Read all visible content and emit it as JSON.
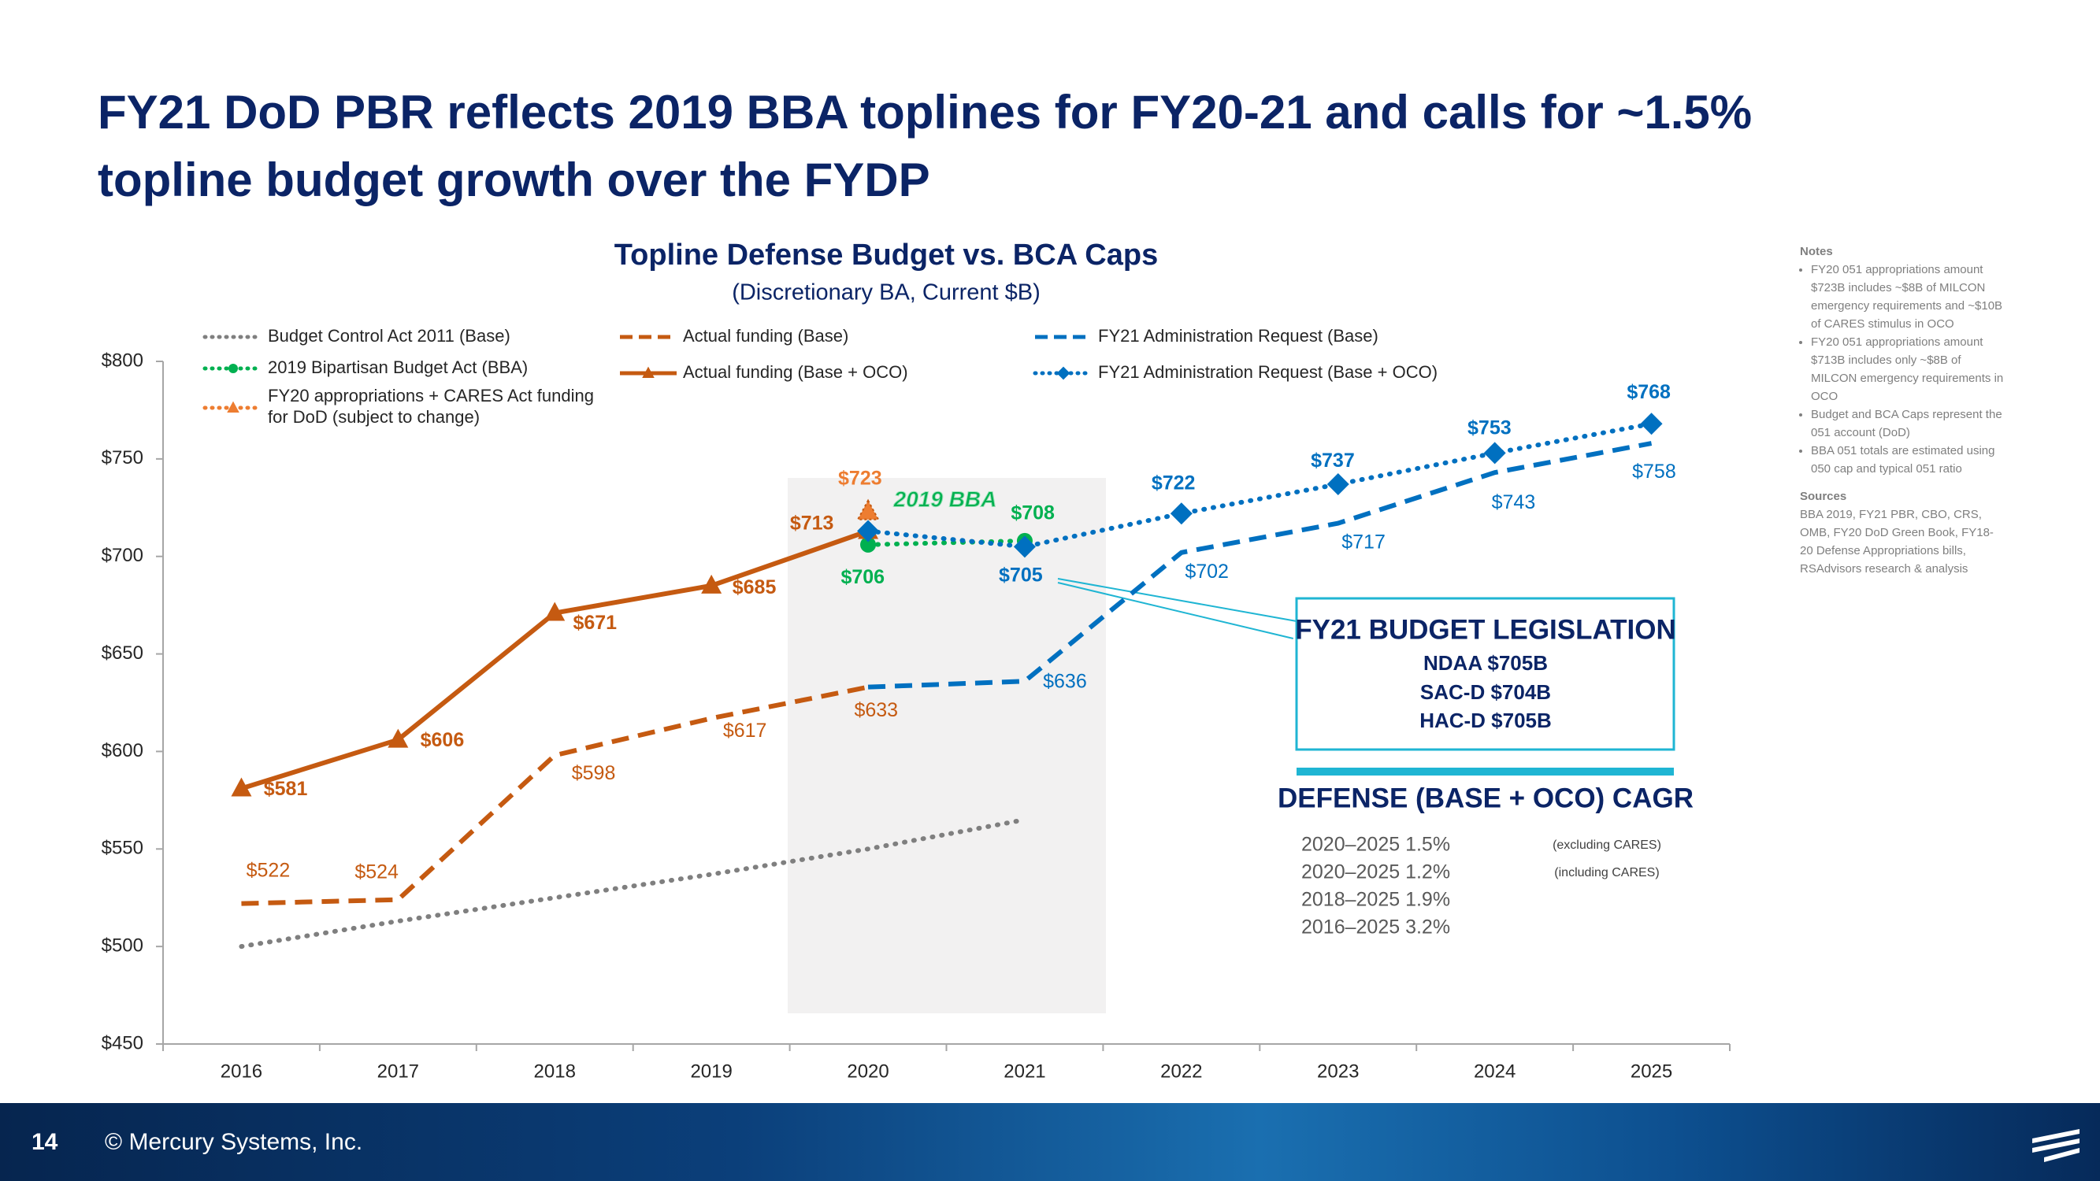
{
  "slide": {
    "title": "FY21 DoD PBR reflects 2019 BBA toplines for FY20-21 and calls for ~1.5% topline budget growth over the FYDP",
    "page_number": "14",
    "footer": "© Mercury Systems, Inc."
  },
  "chart_data": {
    "type": "line",
    "title": "Topline Defense Budget vs. BCA Caps",
    "subtitle": "(Discretionary BA, Current $B)",
    "categories": [
      "2016",
      "2017",
      "2018",
      "2019",
      "2020",
      "2021",
      "2022",
      "2023",
      "2024",
      "2025"
    ],
    "ylim": [
      450,
      800
    ],
    "yticks": [
      {
        "value": 450,
        "label": "$450"
      },
      {
        "value": 500,
        "label": "$500"
      },
      {
        "value": 550,
        "label": "$550"
      },
      {
        "value": 600,
        "label": "$600"
      },
      {
        "value": 650,
        "label": "$650"
      },
      {
        "value": 700,
        "label": "$700"
      },
      {
        "value": 750,
        "label": "$750"
      },
      {
        "value": 800,
        "label": "$800"
      }
    ],
    "grid": false,
    "annotation": "2019 BBA",
    "series": [
      {
        "name": "Budget Control Act 2011 (Base)",
        "color": "#7f7f7f",
        "line_style": "dotted",
        "marker": "none",
        "values": [
          500,
          513,
          525,
          537,
          550,
          565,
          null,
          null,
          null,
          null
        ]
      },
      {
        "name": "2019 Bipartisan Budget Act (BBA)",
        "color": "#00b050",
        "line_style": "dotted",
        "marker": "circle",
        "values": [
          null,
          null,
          null,
          null,
          706,
          708,
          null,
          null,
          null,
          null
        ],
        "value_labels": [
          null,
          null,
          null,
          null,
          "$706",
          "$708",
          null,
          null,
          null,
          null
        ]
      },
      {
        "name": "FY20 appropriations + CARES Act funding for DoD (subject to change)",
        "color": "#ed7d31",
        "line_style": "dotted",
        "marker": "triangle",
        "values": [
          null,
          null,
          null,
          null,
          723,
          null,
          null,
          null,
          null,
          null
        ],
        "value_labels": [
          null,
          null,
          null,
          null,
          "$723",
          null,
          null,
          null,
          null,
          null
        ]
      },
      {
        "name": "Actual funding (Base)",
        "color": "#c55a11",
        "line_style": "dashed",
        "marker": "none",
        "values": [
          522,
          524,
          598,
          617,
          633,
          null,
          null,
          null,
          null,
          null
        ],
        "value_labels": [
          "$522",
          "$524",
          "$598",
          "$617",
          "$633",
          null,
          null,
          null,
          null,
          null
        ]
      },
      {
        "name": "Actual funding (Base + OCO)",
        "color": "#c55a11",
        "line_style": "solid",
        "marker": "triangle",
        "values": [
          581,
          606,
          671,
          685,
          713,
          null,
          null,
          null,
          null,
          null
        ],
        "value_labels": [
          "$581",
          "$606",
          "$671",
          "$685",
          "$713",
          null,
          null,
          null,
          null,
          null
        ]
      },
      {
        "name": "FY21 Administration Request (Base)",
        "color": "#0070c0",
        "line_style": "dashed",
        "marker": "none",
        "values": [
          null,
          null,
          null,
          null,
          633,
          636,
          702,
          717,
          743,
          758
        ],
        "value_labels": [
          null,
          null,
          null,
          null,
          null,
          "$636",
          "$702",
          "$717",
          "$743",
          "$758"
        ]
      },
      {
        "name": "FY21 Administration Request (Base + OCO)",
        "color": "#0070c0",
        "line_style": "dotted",
        "marker": "diamond",
        "values": [
          null,
          null,
          null,
          null,
          713,
          705,
          722,
          737,
          753,
          768
        ],
        "value_labels": [
          null,
          null,
          null,
          null,
          null,
          "$705",
          "$722",
          "$737",
          "$753",
          "$768"
        ]
      }
    ]
  },
  "legislation_box": {
    "title": "FY21 BUDGET LEGISLATION",
    "lines": [
      "NDAA $705B",
      "SAC-D $704B",
      "HAC-D $705B"
    ]
  },
  "cagr": {
    "title": "DEFENSE (BASE + OCO) CAGR",
    "rows": [
      [
        "2020–2025 1.5%",
        "(excluding CARES)"
      ],
      [
        "2020–2025 1.2%",
        "(including CARES)"
      ],
      [
        "2018–2025 1.9%",
        null
      ],
      [
        "2016–2025 3.2%",
        null
      ]
    ]
  },
  "notes": {
    "title": "Notes",
    "bullets": [
      "FY20 051 appropriations amount $723B includes ~$8B of MILCON emergency requirements and ~$10B of CARES stimulus in OCO",
      "FY20 051 appropriations amount $713B includes only ~$8B of MILCON emergency requirements in OCO",
      "Budget and BCA Caps represent the 051 account (DoD)",
      "BBA 051 totals are estimated using 050 cap and typical 051 ratio"
    ],
    "sources_title": "Sources",
    "sources": "BBA 2019, FY21 PBR, CBO, CRS, OMB, FY20 DoD Green Book, FY18-20 Defense Appropriations bills, RSAdvisors research & analysis"
  }
}
